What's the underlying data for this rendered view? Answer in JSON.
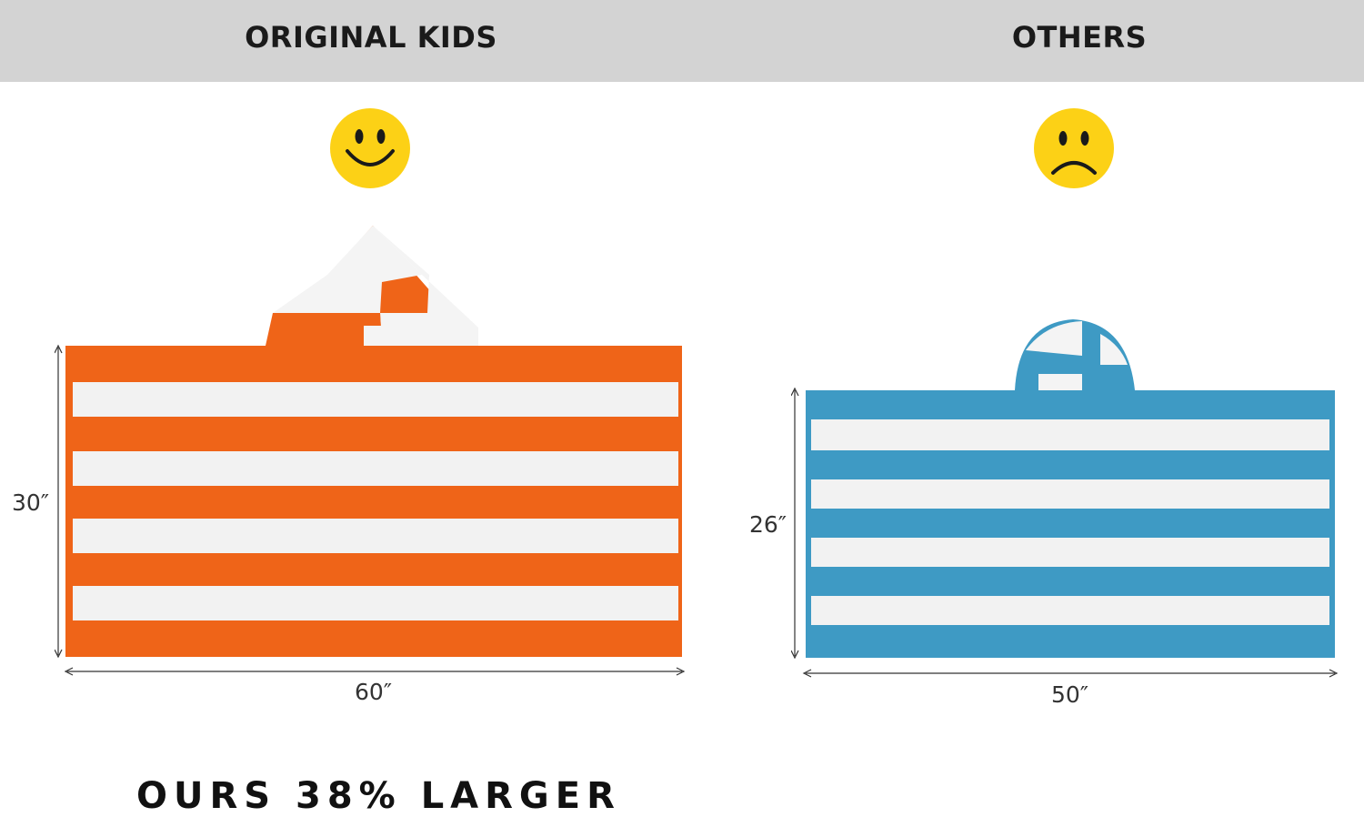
{
  "header": {
    "left_title": "ORIGINAL KIDS",
    "right_title": "OTHERS"
  },
  "left_panel": {
    "emoji": "smiley-face-icon",
    "towel_color": "#ef6418",
    "stripe_color": "#f2f2f2",
    "height_label": "30″",
    "width_label": "60″"
  },
  "right_panel": {
    "emoji": "sad-face-icon",
    "towel_color": "#3e9ac4",
    "stripe_color": "#f2f2f2",
    "height_label": "26″",
    "width_label": "50″"
  },
  "footer": {
    "claim": "OURS 38% LARGER"
  },
  "colors": {
    "header_bg": "#d3d3d3",
    "emoji_yellow": "#fcd116"
  }
}
